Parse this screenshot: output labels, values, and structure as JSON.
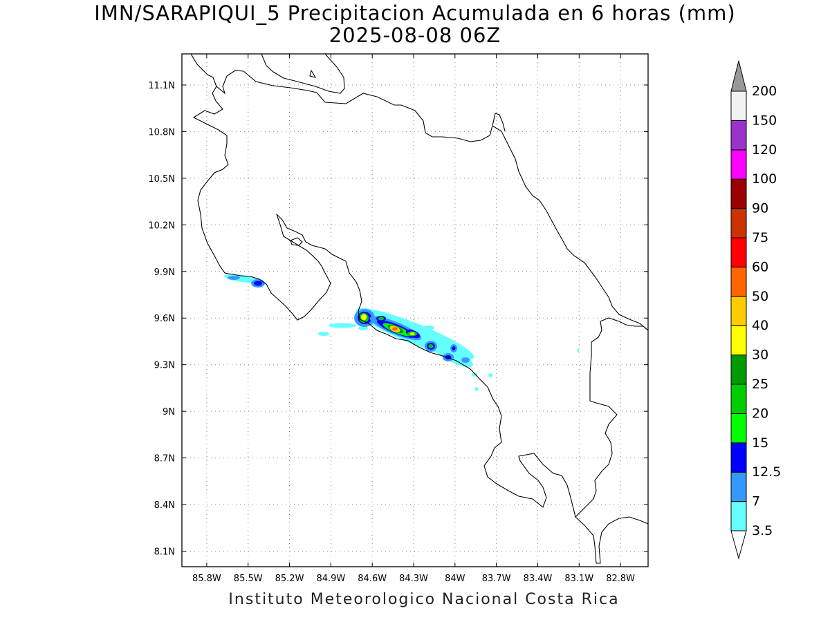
{
  "title": {
    "line1": "IMN/SARAPIQUI_5 Precipitacion Acumulada en 6 horas (mm)",
    "line2": "2025-08-08 06Z"
  },
  "footer": "Instituto Meteorologico Nacional Costa Rica",
  "map": {
    "lon_range": [
      -85.98,
      -82.6
    ],
    "lat_range": [
      8.0,
      11.3
    ],
    "lon_ticks": [
      {
        "v": -85.8,
        "label": "85.8W"
      },
      {
        "v": -85.5,
        "label": "85.5W"
      },
      {
        "v": -85.2,
        "label": "85.2W"
      },
      {
        "v": -84.9,
        "label": "84.9W"
      },
      {
        "v": -84.6,
        "label": "84.6W"
      },
      {
        "v": -84.3,
        "label": "84.3W"
      },
      {
        "v": -84.0,
        "label": "84W"
      },
      {
        "v": -83.7,
        "label": "83.7W"
      },
      {
        "v": -83.4,
        "label": "83.4W"
      },
      {
        "v": -83.1,
        "label": "83.1W"
      },
      {
        "v": -82.8,
        "label": "82.8W"
      }
    ],
    "lat_ticks": [
      {
        "v": 11.1,
        "label": "11.1N"
      },
      {
        "v": 10.8,
        "label": "10.8N"
      },
      {
        "v": 10.5,
        "label": "10.5N"
      },
      {
        "v": 10.2,
        "label": "10.2N"
      },
      {
        "v": 9.9,
        "label": "9.9N"
      },
      {
        "v": 9.6,
        "label": "9.6N"
      },
      {
        "v": 9.3,
        "label": "9.3N"
      },
      {
        "v": 9.0,
        "label": "9N"
      },
      {
        "v": 8.7,
        "label": "8.7N"
      },
      {
        "v": 8.4,
        "label": "8.4N"
      },
      {
        "v": 8.1,
        "label": "8.1N"
      }
    ],
    "grid": "dotted"
  },
  "colorbar": {
    "labels": [
      "3.5",
      "7",
      "12.5",
      "15",
      "20",
      "25",
      "30",
      "40",
      "50",
      "60",
      "75",
      "90",
      "100",
      "120",
      "150",
      "200"
    ],
    "colors": [
      "#66ffff",
      "#3399ff",
      "#0000ff",
      "#00ff00",
      "#00cc00",
      "#009900",
      "#ffff00",
      "#ffcc00",
      "#ff6600",
      "#ff0000",
      "#cc3300",
      "#990000",
      "#ff00ff",
      "#9933cc",
      "#f2f2f2"
    ],
    "top_arrow_color": "#999999",
    "bottom_arrow_color": "#ffffff"
  }
}
